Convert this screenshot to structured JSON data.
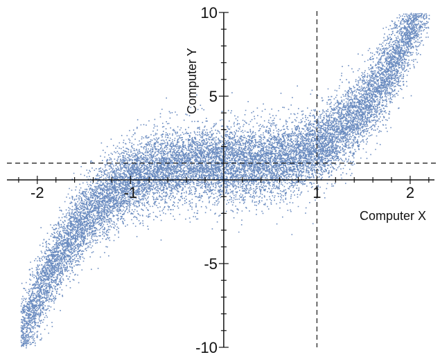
{
  "chart_data": {
    "type": "scatter",
    "xlabel": "Computer X",
    "ylabel": "Computer Y",
    "xlim": [
      -2.4,
      2.32
    ],
    "ylim": [
      -10,
      10
    ],
    "x_ticks": [
      -2,
      -1,
      1,
      2
    ],
    "y_ticks": [
      10,
      5,
      -5,
      -10
    ],
    "x_tick_labels": [
      "-2",
      "-1",
      "1",
      "2"
    ],
    "y_tick_labels": [
      "10",
      "5",
      "-5",
      "-10"
    ],
    "x_minor_step": 0.2,
    "y_minor_step": 1,
    "grid": false,
    "point_color": "#5b7fb9",
    "series": [
      {
        "relation": "y ≈ x^3 + 1 + noise",
        "noise_sd": 1.1,
        "x_range": [
          -2.18,
          2.2
        ]
      }
    ],
    "reference_lines": [
      {
        "orientation": "vertical",
        "x": 1,
        "style": "dashed"
      },
      {
        "orientation": "horizontal",
        "y": 1,
        "style": "dashed"
      }
    ]
  }
}
